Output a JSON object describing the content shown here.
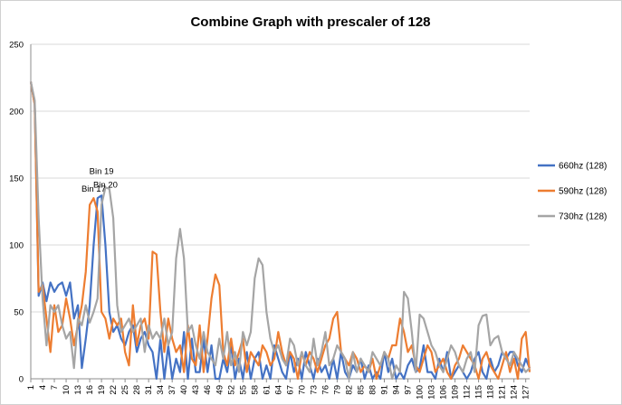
{
  "chart_data": {
    "type": "line",
    "title": "Combine Graph with prescaler of 128",
    "xlabel": "",
    "ylabel": "",
    "ylim": [
      0,
      250
    ],
    "yticks": [
      0,
      50,
      100,
      150,
      200,
      250
    ],
    "xlim": [
      1,
      128
    ],
    "xticks": [
      1,
      4,
      7,
      10,
      13,
      16,
      19,
      22,
      25,
      28,
      31,
      34,
      37,
      40,
      43,
      46,
      49,
      52,
      55,
      58,
      61,
      64,
      67,
      70,
      73,
      76,
      79,
      82,
      85,
      88,
      91,
      94,
      97,
      100,
      103,
      106,
      109,
      112,
      115,
      118,
      121,
      124,
      127
    ],
    "grid": true,
    "legend_position": "right",
    "annotations": [
      {
        "text": "Bin 17",
        "x": 17,
        "y": 140
      },
      {
        "text": "Bin 19",
        "x": 19,
        "y": 153
      },
      {
        "text": "Bin 20",
        "x": 20,
        "y": 143
      }
    ],
    "series": [
      {
        "name": "660hz (128)",
        "color": "#4472c4",
        "values": [
          222,
          205,
          62,
          72,
          58,
          72,
          65,
          70,
          72,
          62,
          72,
          45,
          55,
          8,
          30,
          55,
          100,
          135,
          137,
          100,
          50,
          35,
          40,
          30,
          25,
          35,
          40,
          20,
          30,
          35,
          25,
          20,
          0,
          30,
          0,
          25,
          0,
          15,
          5,
          35,
          0,
          30,
          5,
          5,
          30,
          5,
          25,
          0,
          0,
          15,
          5,
          25,
          0,
          15,
          0,
          20,
          0,
          15,
          20,
          0,
          10,
          0,
          25,
          15,
          5,
          0,
          20,
          5,
          15,
          0,
          20,
          10,
          0,
          15,
          5,
          10,
          0,
          15,
          0,
          20,
          5,
          0,
          10,
          5,
          15,
          0,
          10,
          0,
          5,
          0,
          20,
          5,
          15,
          0,
          5,
          0,
          10,
          15,
          5,
          8,
          25,
          5,
          5,
          0,
          15,
          5,
          20,
          0,
          5,
          10,
          5,
          0,
          5,
          15,
          20,
          5,
          0,
          15,
          5,
          10,
          20,
          15,
          20,
          20,
          10,
          5,
          15,
          8
        ]
      },
      {
        "name": "590hz (128)",
        "color": "#ed7d31",
        "values": [
          222,
          205,
          65,
          70,
          45,
          20,
          55,
          35,
          40,
          60,
          45,
          25,
          40,
          55,
          80,
          130,
          135,
          125,
          50,
          45,
          30,
          45,
          40,
          45,
          20,
          10,
          55,
          25,
          40,
          45,
          30,
          95,
          93,
          50,
          20,
          45,
          30,
          20,
          25,
          5,
          40,
          15,
          10,
          40,
          5,
          30,
          60,
          78,
          70,
          20,
          10,
          30,
          10,
          20,
          30,
          5,
          20,
          15,
          10,
          25,
          20,
          10,
          15,
          35,
          20,
          10,
          20,
          15,
          0,
          20,
          10,
          20,
          15,
          5,
          15,
          25,
          30,
          45,
          50,
          20,
          15,
          10,
          20,
          15,
          5,
          10,
          5,
          15,
          0,
          10,
          20,
          15,
          25,
          25,
          45,
          35,
          20,
          25,
          10,
          5,
          15,
          25,
          20,
          5,
          10,
          15,
          5,
          0,
          10,
          15,
          25,
          20,
          15,
          10,
          0,
          15,
          20,
          10,
          5,
          0,
          10,
          20,
          5,
          15,
          0,
          30,
          35,
          5
        ]
      },
      {
        "name": "730hz (128)",
        "color": "#a5a5a5",
        "values": [
          222,
          208,
          120,
          60,
          25,
          55,
          50,
          55,
          40,
          30,
          35,
          8,
          45,
          40,
          55,
          42,
          50,
          60,
          130,
          143,
          142,
          120,
          55,
          35,
          40,
          45,
          35,
          40,
          45,
          20,
          40,
          30,
          35,
          30,
          45,
          25,
          35,
          90,
          112,
          90,
          35,
          40,
          25,
          15,
          35,
          20,
          15,
          10,
          30,
          15,
          35,
          10,
          20,
          5,
          35,
          25,
          35,
          75,
          90,
          85,
          50,
          30,
          20,
          25,
          15,
          10,
          30,
          25,
          10,
          20,
          10,
          5,
          30,
          10,
          20,
          35,
          10,
          15,
          25,
          20,
          15,
          0,
          20,
          5,
          15,
          10,
          5,
          20,
          15,
          10,
          20,
          15,
          0,
          10,
          5,
          65,
          60,
          35,
          5,
          48,
          45,
          35,
          25,
          20,
          10,
          5,
          15,
          25,
          20,
          10,
          5,
          15,
          20,
          5,
          40,
          47,
          48,
          25,
          30,
          32,
          20,
          15,
          10,
          20,
          15,
          10,
          5,
          8
        ]
      }
    ]
  }
}
